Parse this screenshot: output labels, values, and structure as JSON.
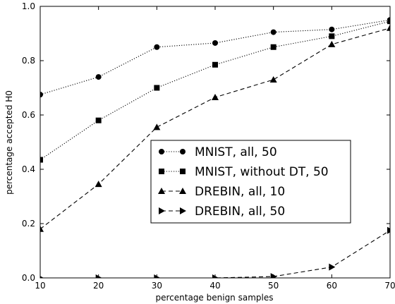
{
  "chart_data": {
    "type": "line",
    "xlabel": "percentage benign samples",
    "ylabel": "percentage accepted H0",
    "xlim": [
      10,
      70
    ],
    "ylim": [
      0.0,
      1.0
    ],
    "x_ticks": [
      "10",
      "20",
      "30",
      "40",
      "50",
      "60",
      "70"
    ],
    "y_ticks": [
      "0.0",
      "0.2",
      "0.4",
      "0.6",
      "0.8",
      "1.0"
    ],
    "grid": false,
    "legend_position": "center-right",
    "x": [
      10,
      20,
      30,
      40,
      50,
      60,
      70
    ],
    "series": [
      {
        "name": "MNIST, all, 50",
        "marker": "circle",
        "linestyle": "dotted",
        "values": [
          0.675,
          0.74,
          0.85,
          0.865,
          0.905,
          0.915,
          0.95
        ]
      },
      {
        "name": "MNIST, without DT, 50",
        "marker": "square",
        "linestyle": "dotted",
        "values": [
          0.435,
          0.58,
          0.7,
          0.785,
          0.85,
          0.89,
          0.945
        ]
      },
      {
        "name": "DREBIN, all, 10",
        "marker": "triangle-up",
        "linestyle": "dashed",
        "values": [
          0.18,
          0.345,
          0.555,
          0.665,
          0.73,
          0.86,
          0.92
        ]
      },
      {
        "name": "DREBIN, all, 50",
        "marker": "triangle-right",
        "linestyle": "dashed",
        "values": [
          0.0,
          0.0,
          0.0,
          0.0,
          0.005,
          0.04,
          0.175
        ]
      }
    ]
  }
}
